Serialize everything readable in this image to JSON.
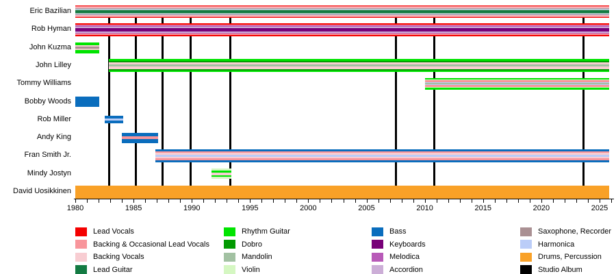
{
  "chart_data": {
    "type": "timeline",
    "x_axis": {
      "min": 1980,
      "max": 2026,
      "minor_step": 1,
      "major_step": 5,
      "tick_labels": [
        "1980",
        "1985",
        "1990",
        "1995",
        "2000",
        "2005",
        "2010",
        "2015",
        "2020",
        "2025"
      ]
    },
    "palette": {
      "lead_vocals": "#f40000",
      "backing_occ": "#f8959b",
      "backing_vocals": "#f8cdd2",
      "lead_guitar": "#137a42",
      "rhythm_guitar": "#00e400",
      "dobro": "#029a02",
      "mandolin": "#a2c1a2",
      "violin": "#d5f7c2",
      "bass": "#0a6dbd",
      "keyboards": "#780078",
      "melodica": "#b85ab8",
      "accordion": "#ccaed7",
      "sax_recorder": "#aa9093",
      "harmonica": "#bbcdf8",
      "drums": "#f9a127",
      "studio_album": "#000000"
    },
    "members": [
      {
        "name": "Eric Bazilian",
        "from": 1980,
        "till": 2025.85,
        "height": 19,
        "stripes": [
          [
            "lead_vocals",
            2
          ],
          [
            "backing_occ",
            2
          ],
          [
            "backing_vocals",
            1.5
          ],
          [
            "sax_recorder",
            2
          ],
          [
            "harmonica",
            1.5
          ],
          [
            "mandolin",
            1
          ],
          [
            "lead_guitar",
            4.5
          ],
          [
            "mandolin",
            1
          ],
          [
            "harmonica",
            1.5
          ],
          [
            "sax_recorder",
            2
          ],
          [
            "backing_vocals",
            1.5
          ],
          [
            "backing_occ",
            2
          ],
          [
            "lead_vocals",
            2
          ]
        ]
      },
      {
        "name": "Rob Hyman",
        "from": 1980,
        "till": 2025.85,
        "height": 19,
        "stripes": [
          [
            "lead_vocals",
            2
          ],
          [
            "backing_occ",
            2
          ],
          [
            "melodica",
            2
          ],
          [
            "accordion",
            2
          ],
          [
            "keyboards",
            6
          ],
          [
            "accordion",
            2
          ],
          [
            "melodica",
            2
          ],
          [
            "backing_occ",
            2
          ],
          [
            "lead_vocals",
            2
          ]
        ]
      },
      {
        "name": "John Kuzma",
        "from": 1980,
        "till": 1982.05,
        "height": 16,
        "stripes": [
          [
            "rhythm_guitar",
            5
          ],
          [
            "backing_vocals",
            1.5
          ],
          [
            "sax_recorder",
            3.5
          ],
          [
            "backing_vocals",
            1.5
          ],
          [
            "rhythm_guitar",
            5
          ]
        ]
      },
      {
        "name": "John Lilley",
        "from": 1982.9,
        "till": 2025.85,
        "height": 19,
        "stripes": [
          [
            "rhythm_guitar",
            2.5
          ],
          [
            "dobro",
            2
          ],
          [
            "backing_vocals",
            3.5
          ],
          [
            "mandolin",
            3
          ],
          [
            "backing_vocals",
            3.5
          ],
          [
            "dobro",
            2
          ],
          [
            "rhythm_guitar",
            2.5
          ]
        ]
      },
      {
        "name": "Tommy Williams",
        "from": 2010,
        "till": 2025.85,
        "height": 17,
        "stripes": [
          [
            "rhythm_guitar",
            2.5
          ],
          [
            "violin",
            1.5
          ],
          [
            "backing_occ",
            3
          ],
          [
            "harmonica",
            1.2
          ],
          [
            "mandolin",
            2
          ],
          [
            "harmonica",
            1.2
          ],
          [
            "backing_occ",
            3
          ],
          [
            "violin",
            1.5
          ],
          [
            "rhythm_guitar",
            2.5
          ]
        ]
      },
      {
        "name": "Bobby Woods",
        "from": 1980,
        "till": 1982.05,
        "height": 15,
        "stripes": [
          [
            "bass",
            1
          ]
        ]
      },
      {
        "name": "Rob Miller",
        "from": 1982.5,
        "till": 1984.1,
        "height": 11,
        "stripes": [
          [
            "bass",
            4
          ],
          [
            "harmonica",
            3
          ],
          [
            "bass",
            4
          ]
        ]
      },
      {
        "name": "Andy King",
        "from": 1984,
        "till": 1987.1,
        "height": 15,
        "stripes": [
          [
            "bass",
            5
          ],
          [
            "backing_occ",
            4
          ],
          [
            "bass",
            5
          ]
        ]
      },
      {
        "name": "Fran Smith Jr.",
        "from": 1986.9,
        "till": 2025.85,
        "height": 19,
        "stripes": [
          [
            "bass",
            3
          ],
          [
            "backing_occ",
            2.5
          ],
          [
            "backing_vocals",
            2.5
          ],
          [
            "harmonica",
            3
          ],
          [
            "backing_vocals",
            2.5
          ],
          [
            "backing_occ",
            2.5
          ],
          [
            "bass",
            3
          ]
        ]
      },
      {
        "name": "Mindy Jostyn",
        "from": 1991.7,
        "till": 1993.4,
        "height": 15,
        "stripes": [
          [
            "violin",
            3
          ],
          [
            "rhythm_guitar",
            2.5
          ],
          [
            "backing_vocals",
            4
          ],
          [
            "rhythm_guitar",
            2.5
          ],
          [
            "violin",
            3
          ]
        ]
      },
      {
        "name": "David Uosikkinen",
        "from": 1980,
        "till": 2025.85,
        "height": 19,
        "stripes": [
          [
            "drums",
            1
          ]
        ]
      }
    ],
    "album_years": [
      1982.9,
      1985.2,
      1987.5,
      1989.9,
      1993.3,
      2007.5,
      2010.8,
      2023.6
    ],
    "legend_columns": [
      [
        {
          "label": "Lead Vocals",
          "color_key": "lead_vocals"
        },
        {
          "label": "Backing & Occasional Lead Vocals",
          "color_key": "backing_occ"
        },
        {
          "label": "Backing Vocals",
          "color_key": "backing_vocals"
        },
        {
          "label": "Lead Guitar",
          "color_key": "lead_guitar"
        }
      ],
      [
        {
          "label": "Rhythm Guitar",
          "color_key": "rhythm_guitar"
        },
        {
          "label": "Dobro",
          "color_key": "dobro"
        },
        {
          "label": "Mandolin",
          "color_key": "mandolin"
        },
        {
          "label": "Violin",
          "color_key": "violin"
        }
      ],
      [
        {
          "label": "Bass",
          "color_key": "bass"
        },
        {
          "label": "Keyboards",
          "color_key": "keyboards"
        },
        {
          "label": "Melodica",
          "color_key": "melodica"
        },
        {
          "label": "Accordion",
          "color_key": "accordion"
        }
      ],
      [
        {
          "label": "Saxophone, Recorder",
          "color_key": "sax_recorder"
        },
        {
          "label": "Harmonica",
          "color_key": "harmonica"
        },
        {
          "label": "Drums, Percussion",
          "color_key": "drums"
        },
        {
          "label": "Studio Album",
          "color_key": "studio_album"
        }
      ]
    ]
  }
}
